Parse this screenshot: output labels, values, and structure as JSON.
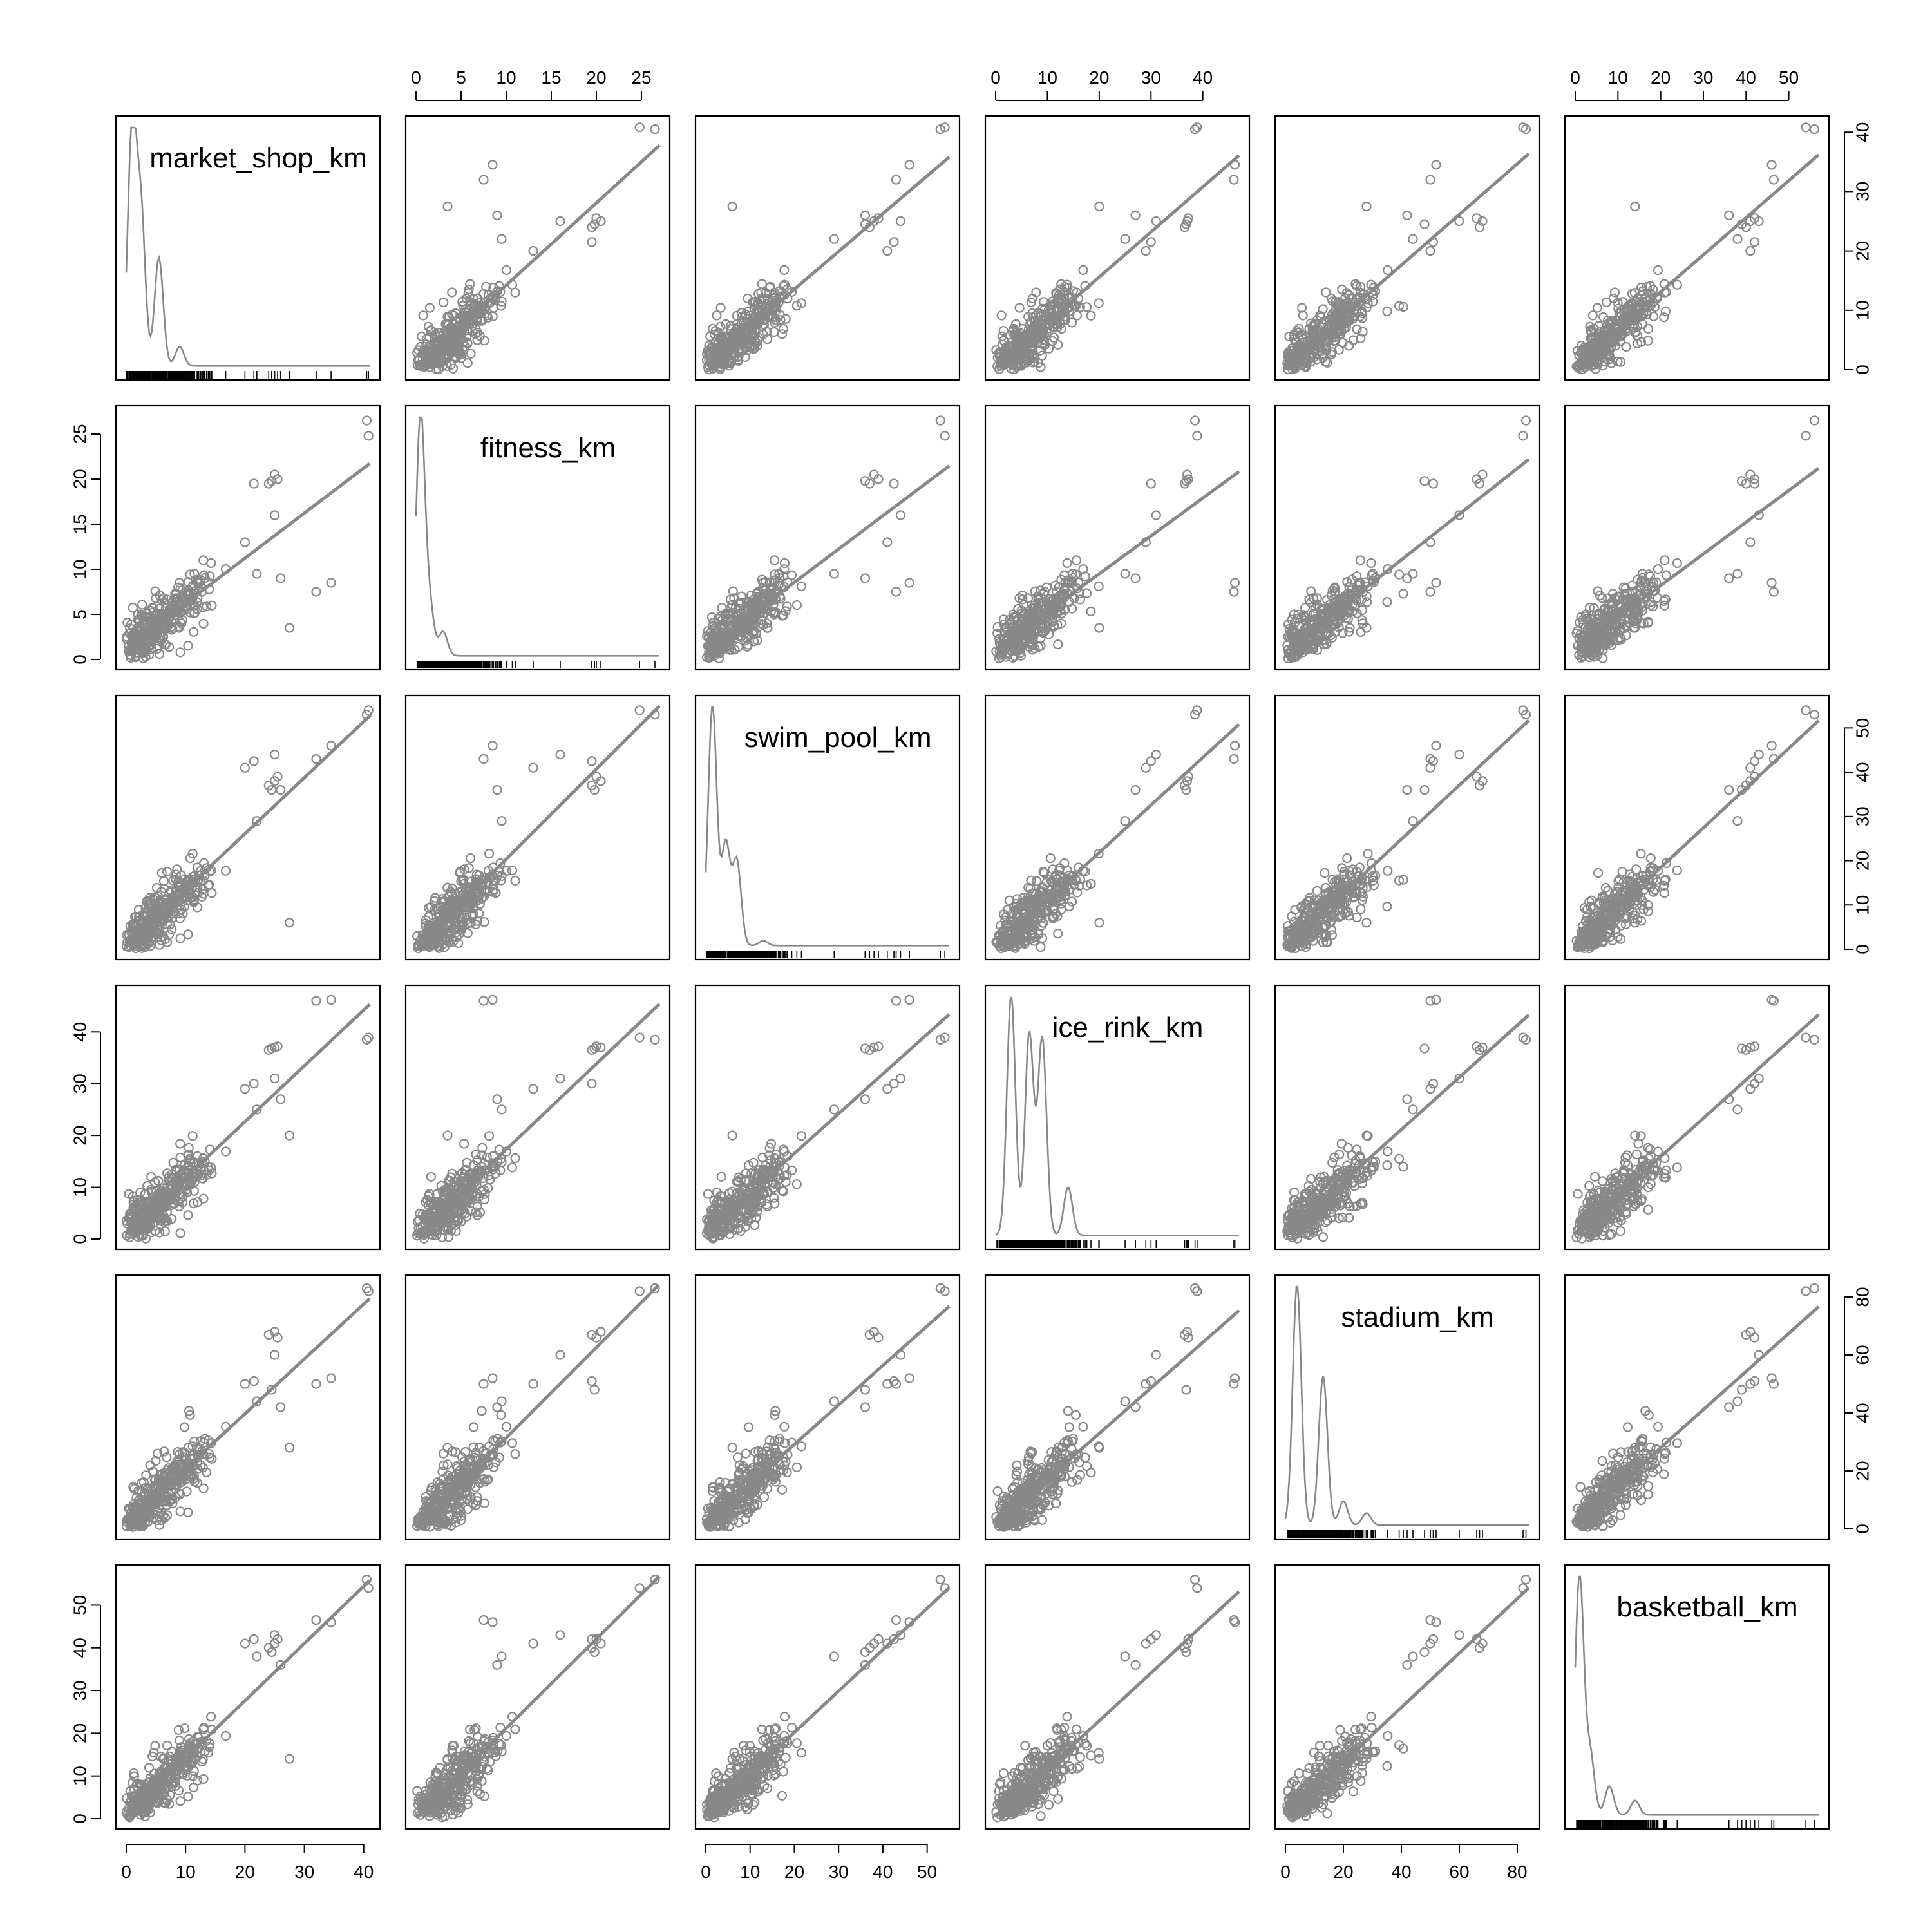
{
  "chart_data": {
    "type": "scatter",
    "variables": [
      {
        "name": "market_shop_km",
        "range": [
          0,
          41
        ],
        "ticks": [
          0,
          10,
          20,
          30,
          40
        ],
        "density_peaks": [
          [
            1,
            1.0
          ],
          [
            2.5,
            0.62
          ],
          [
            5.5,
            0.45
          ],
          [
            9,
            0.08
          ]
        ]
      },
      {
        "name": "fitness_km",
        "range": [
          0,
          27
        ],
        "ticks": [
          0,
          5,
          10,
          15,
          20,
          25
        ],
        "density_peaks": [
          [
            0.5,
            1.0
          ],
          [
            1.5,
            0.2
          ],
          [
            3,
            0.1
          ]
        ]
      },
      {
        "name": "swim_pool_km",
        "range": [
          0,
          55
        ],
        "ticks": [
          0,
          10,
          20,
          30,
          40,
          50
        ],
        "density_peaks": [
          [
            1.5,
            1.0
          ],
          [
            4.5,
            0.42
          ],
          [
            7,
            0.35
          ],
          [
            13,
            0.02
          ]
        ]
      },
      {
        "name": "ice_rink_km",
        "range": [
          0,
          47
        ],
        "ticks": [
          0,
          10,
          20,
          30,
          40
        ],
        "density_peaks": [
          [
            3,
            1.0
          ],
          [
            6.5,
            0.84
          ],
          [
            9,
            0.82
          ],
          [
            14,
            0.2
          ]
        ]
      },
      {
        "name": "stadium_km",
        "range": [
          0,
          84
        ],
        "ticks": [
          0,
          20,
          40,
          60,
          80
        ],
        "density_peaks": [
          [
            4,
            1.0
          ],
          [
            13,
            0.62
          ],
          [
            20,
            0.1
          ],
          [
            28,
            0.05
          ]
        ]
      },
      {
        "name": "basketball_km",
        "range": [
          0,
          57
        ],
        "ticks": [
          0,
          10,
          20,
          30,
          40,
          50
        ],
        "density_peaks": [
          [
            1,
            1.0
          ],
          [
            3.5,
            0.25
          ],
          [
            8,
            0.12
          ],
          [
            14,
            0.06
          ]
        ]
      }
    ],
    "axis_labels": {
      "top": {
        "1": [
          "0",
          "5",
          "10",
          "15",
          "20",
          "25"
        ],
        "3": [
          "0",
          "10",
          "20",
          "30",
          "40"
        ],
        "5": [
          "0",
          "10",
          "20",
          "30",
          "40",
          "50"
        ]
      },
      "bottom": {
        "0": [
          "0",
          "10",
          "20",
          "30",
          "40"
        ],
        "2": [
          "0",
          "10",
          "20",
          "30",
          "40",
          "50"
        ],
        "4": [
          "0",
          "20",
          "40",
          "60",
          "80"
        ]
      },
      "left": {
        "1": [
          "0",
          "5",
          "10",
          "15",
          "20",
          "25"
        ],
        "3": [
          "0",
          "10",
          "20",
          "30",
          "40"
        ],
        "5": [
          "0",
          "10",
          "20",
          "30",
          "40",
          "50"
        ]
      },
      "right": {
        "0": [
          "0",
          "10",
          "20",
          "30",
          "40"
        ],
        "2": [
          "0",
          "10",
          "20",
          "30",
          "40",
          "50"
        ],
        "4": [
          "0",
          "20",
          "40",
          "60",
          "80"
        ]
      }
    },
    "layout": "scatterplot-matrix 6x6, variable names and density curves on diagonal, linear fit line in each off-diagonal panel",
    "colors": {
      "points": "#888888",
      "fit_line": "#888888",
      "density": "#888888",
      "rug": "#000000",
      "frame": "#000000"
    },
    "outliers": [
      [
        40.5,
        26.5,
        53,
        38.5,
        83,
        56
      ],
      [
        40.8,
        24.8,
        54,
        38.9,
        82,
        54
      ],
      [
        32,
        7.5,
        43,
        46,
        50,
        46.5
      ],
      [
        34.5,
        8.5,
        46,
        46.2,
        52,
        46
      ],
      [
        27.5,
        3.5,
        6,
        20,
        28,
        14
      ],
      [
        25,
        20.5,
        38,
        37,
        68,
        41
      ],
      [
        24,
        19.5,
        37,
        36.5,
        67,
        40
      ],
      [
        25.5,
        20,
        39,
        37.2,
        66,
        42
      ],
      [
        24.5,
        19.8,
        36,
        36.8,
        48,
        39
      ],
      [
        25,
        16,
        44,
        31,
        60,
        43
      ],
      [
        20,
        13,
        41,
        29,
        50,
        41
      ],
      [
        21.5,
        19.5,
        42.5,
        30,
        51,
        42
      ],
      [
        22,
        9.5,
        29,
        25,
        44,
        38
      ],
      [
        26,
        9,
        36,
        27,
        42,
        36
      ]
    ]
  }
}
